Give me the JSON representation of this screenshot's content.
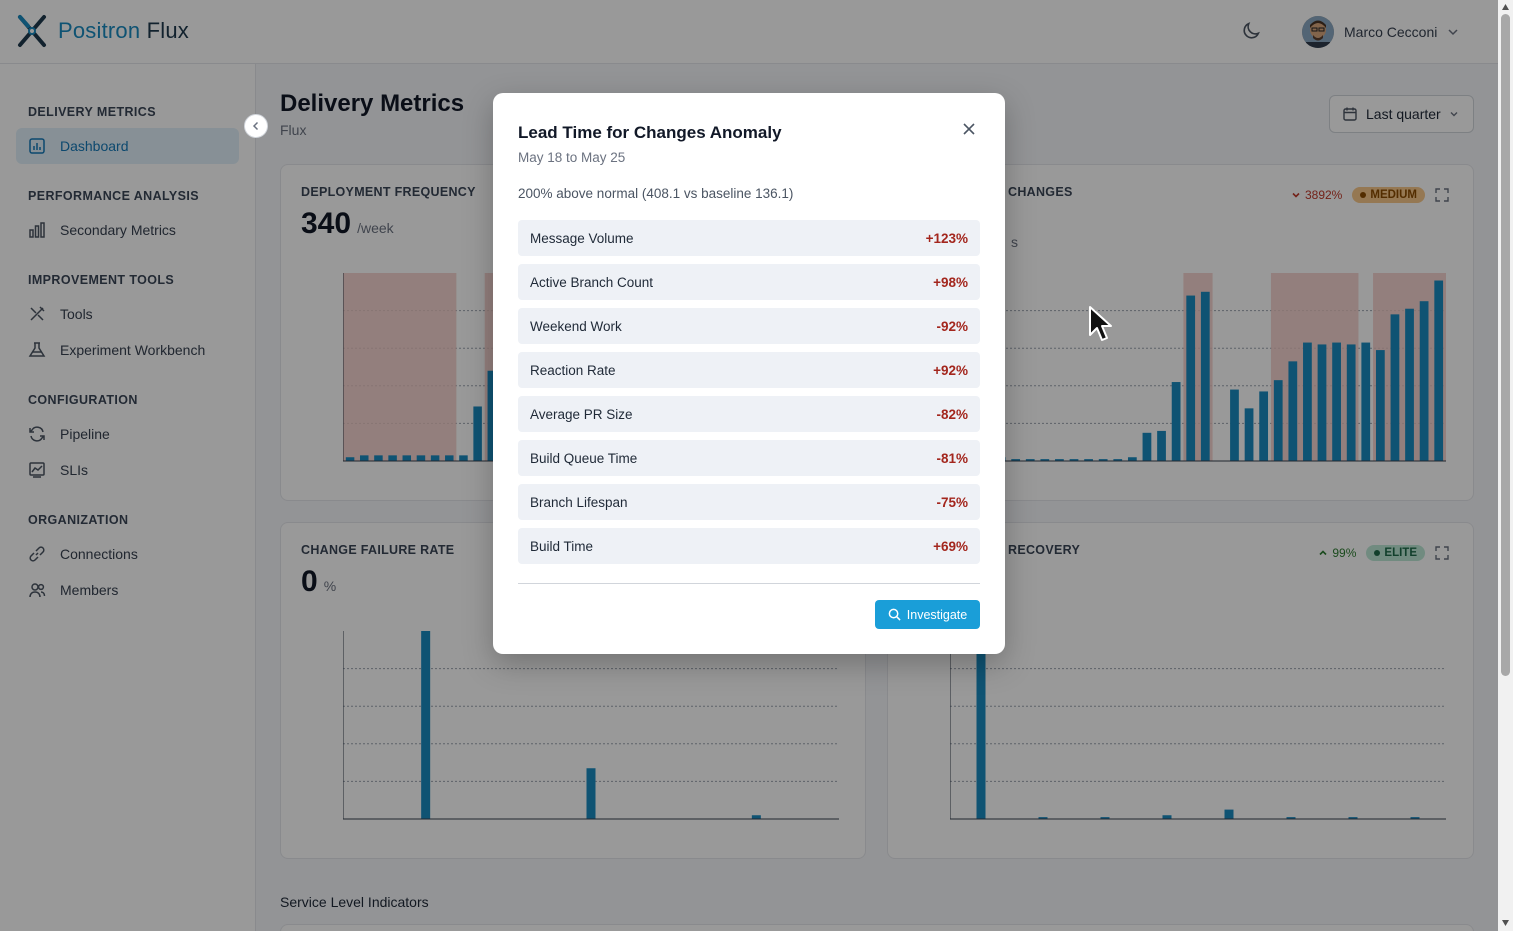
{
  "app": {
    "logo_word1": "Positron",
    "logo_word2": "Flux",
    "user_name": "Marco Cecconi"
  },
  "sidebar": {
    "sections": [
      {
        "title": "DELIVERY METRICS",
        "items": [
          {
            "label": "Dashboard",
            "icon": "chart-bar-icon",
            "active": true
          }
        ]
      },
      {
        "title": "PERFORMANCE ANALYSIS",
        "items": [
          {
            "label": "Secondary Metrics",
            "icon": "bar-chart-icon"
          }
        ]
      },
      {
        "title": "IMPROVEMENT TOOLS",
        "items": [
          {
            "label": "Tools",
            "icon": "tools-icon"
          },
          {
            "label": "Experiment Workbench",
            "icon": "flask-icon"
          }
        ]
      },
      {
        "title": "CONFIGURATION",
        "items": [
          {
            "label": "Pipeline",
            "icon": "refresh-icon"
          },
          {
            "label": "SLIs",
            "icon": "chart-line-icon"
          }
        ]
      },
      {
        "title": "ORGANIZATION",
        "items": [
          {
            "label": "Connections",
            "icon": "link-icon"
          },
          {
            "label": "Members",
            "icon": "users-icon"
          }
        ]
      }
    ]
  },
  "page": {
    "title": "Delivery Metrics",
    "subtitle": "Flux",
    "range_label": "Last quarter",
    "section_label": "Service Level Indicators"
  },
  "cards": {
    "deployment_frequency": {
      "title": "DEPLOYMENT FREQUENCY",
      "value": "340",
      "unit": "/week"
    },
    "lead_time": {
      "title_partial": "CHANGES",
      "unit_partial": "s",
      "trend": "3892%",
      "badge": "MEDIUM"
    },
    "change_failure_rate": {
      "title": "CHANGE FAILURE RATE",
      "value": "0",
      "unit": "%"
    },
    "time_to_recovery": {
      "title_partial": "RECOVERY",
      "trend": "99%",
      "badge": "ELITE"
    }
  },
  "modal": {
    "title": "Lead Time for Changes Anomaly",
    "date_range": "May 18 to May 25",
    "description": "200% above normal (408.1 vs baseline 136.1)",
    "factors": [
      {
        "name": "Message Volume",
        "value": "+123%"
      },
      {
        "name": "Active Branch Count",
        "value": "+98%"
      },
      {
        "name": "Weekend Work",
        "value": "-92%"
      },
      {
        "name": "Reaction Rate",
        "value": "+92%"
      },
      {
        "name": "Average PR Size",
        "value": "-82%"
      },
      {
        "name": "Build Queue Time",
        "value": "-81%"
      },
      {
        "name": "Branch Lifespan",
        "value": "-75%"
      },
      {
        "name": "Build Time",
        "value": "+69%"
      }
    ],
    "action_label": "Investigate"
  },
  "colors": {
    "accent": "#1a9ed8",
    "bar": "#1a8bc0",
    "anomaly_band": "#f3c9c4",
    "negative": "#a3261d"
  },
  "chart_data": [
    {
      "type": "bar",
      "series": [
        {
          "values": [
            2,
            3,
            3,
            3,
            3,
            3,
            3,
            3,
            3,
            29,
            48,
            56,
            82,
            93,
            95,
            96,
            98,
            99,
            97,
            85,
            61,
            44,
            28,
            13,
            11,
            12,
            10,
            13,
            17,
            12,
            14,
            19,
            20,
            19,
            17
          ]
        }
      ],
      "ylim": [
        0,
        100
      ],
      "anomaly_ranges": [
        [
          0,
          8
        ],
        [
          10,
          18
        ]
      ]
    },
    {
      "type": "bar",
      "series": [
        {
          "values": [
            4,
            4,
            1,
            2,
            1,
            1,
            1,
            1,
            1,
            1,
            1,
            1,
            2,
            15,
            16,
            42,
            88,
            90,
            0,
            38,
            28,
            37,
            43,
            53,
            63,
            62,
            63,
            62,
            63,
            59,
            78,
            81,
            85,
            96
          ]
        }
      ],
      "ylim": [
        0,
        100
      ],
      "anomaly_ranges": [
        [
          16,
          18
        ],
        [
          22,
          28
        ],
        [
          29,
          34
        ]
      ]
    },
    {
      "type": "bar",
      "series": [
        {
          "values": [
            100,
            27,
            2
          ]
        }
      ],
      "ylim": [
        0,
        100
      ]
    },
    {
      "type": "bar",
      "series": [
        {
          "values": [
            100,
            1,
            1,
            2,
            5,
            1,
            1,
            1
          ]
        }
      ],
      "ylim": [
        0,
        100
      ]
    }
  ]
}
